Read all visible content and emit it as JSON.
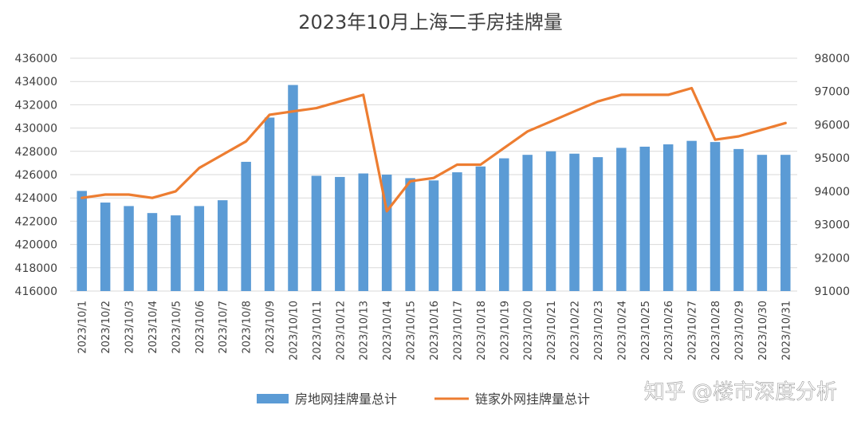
{
  "chart_data": {
    "type": "bar+line",
    "title": "2023年10月上海二手房挂牌量",
    "categories": [
      "2023/10/1",
      "2023/10/2",
      "2023/10/3",
      "2023/10/4",
      "2023/10/5",
      "2023/10/6",
      "2023/10/7",
      "2023/10/8",
      "2023/10/9",
      "2023/10/10",
      "2023/10/11",
      "2023/10/12",
      "2023/10/13",
      "2023/10/14",
      "2023/10/15",
      "2023/10/16",
      "2023/10/17",
      "2023/10/18",
      "2023/10/19",
      "2023/10/20",
      "2023/10/21",
      "2023/10/22",
      "2023/10/23",
      "2023/10/24",
      "2023/10/25",
      "2023/10/26",
      "2023/10/27",
      "2023/10/28",
      "2023/10/29",
      "2023/10/30",
      "2023/10/31"
    ],
    "series": [
      {
        "name": "房地网挂牌量总计",
        "type": "bar",
        "axis": "left",
        "color": "#5b9bd5",
        "values": [
          424600,
          423600,
          423300,
          422700,
          422500,
          423300,
          423800,
          427100,
          430900,
          433700,
          425900,
          425800,
          426100,
          426000,
          425700,
          425500,
          426200,
          426700,
          427400,
          427700,
          428000,
          427800,
          427500,
          428300,
          428400,
          428600,
          428900,
          428800,
          428200,
          427700,
          427700
        ]
      },
      {
        "name": "链家外网挂牌量总计",
        "type": "line",
        "axis": "right",
        "color": "#ed7d31",
        "values": [
          93800,
          93900,
          93900,
          93800,
          94000,
          94700,
          95100,
          95500,
          96300,
          96400,
          96500,
          96700,
          96900,
          93400,
          94300,
          94400,
          94800,
          94800,
          95300,
          95800,
          96100,
          96400,
          96700,
          96900,
          96900,
          96900,
          97100,
          95550,
          95650,
          95850,
          96050
        ]
      }
    ],
    "y_left": {
      "min": 416000,
      "max": 436000,
      "ticks": [
        416000,
        418000,
        420000,
        422000,
        424000,
        426000,
        428000,
        430000,
        432000,
        434000,
        436000
      ]
    },
    "y_right": {
      "min": 91000,
      "max": 98000,
      "ticks": [
        91000,
        92000,
        93000,
        94000,
        95000,
        96000,
        97000,
        98000
      ]
    },
    "grid": true,
    "legend_position": "bottom",
    "watermark": "知乎 @楼市深度分析"
  }
}
